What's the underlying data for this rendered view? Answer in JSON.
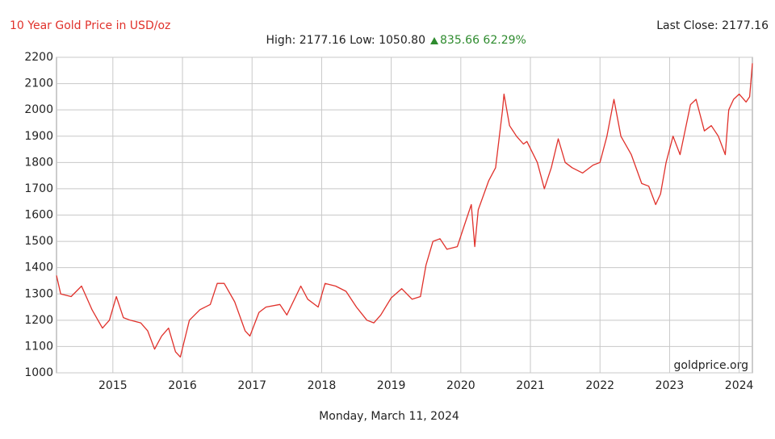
{
  "chart_data": {
    "type": "line",
    "title": "10 Year Gold Price in USD/oz",
    "last_close": "Last Close: 2177.16",
    "stats": "High: 2177.16 Low: 1050.80",
    "change": "835.66 62.29%",
    "watermark": "goldprice.org",
    "date": "Monday, March 11, 2024",
    "xlim": [
      2014.19,
      2024.19
    ],
    "xticks": [
      2015,
      2016,
      2017,
      2018,
      2019,
      2020,
      2021,
      2022,
      2023,
      2024
    ],
    "ylim": [
      1000,
      2200
    ],
    "yticks": [
      1000,
      1100,
      1200,
      1300,
      1400,
      1500,
      1600,
      1700,
      1800,
      1900,
      2000,
      2100,
      2200
    ],
    "grid": true,
    "x": [
      2014.19,
      2014.25,
      2014.4,
      2014.55,
      2014.7,
      2014.85,
      2014.95,
      2015.05,
      2015.15,
      2015.25,
      2015.4,
      2015.5,
      2015.6,
      2015.7,
      2015.8,
      2015.9,
      2015.97,
      2016.1,
      2016.25,
      2016.4,
      2016.5,
      2016.6,
      2016.75,
      2016.9,
      2016.97,
      2017.1,
      2017.2,
      2017.4,
      2017.5,
      2017.7,
      2017.8,
      2017.95,
      2018.05,
      2018.2,
      2018.35,
      2018.5,
      2018.65,
      2018.75,
      2018.85,
      2019.0,
      2019.15,
      2019.3,
      2019.42,
      2019.5,
      2019.6,
      2019.7,
      2019.8,
      2019.95,
      2020.05,
      2020.15,
      2020.2,
      2020.25,
      2020.4,
      2020.5,
      2020.6,
      2020.62,
      2020.7,
      2020.8,
      2020.9,
      2020.95,
      2021.1,
      2021.2,
      2021.3,
      2021.4,
      2021.5,
      2021.6,
      2021.75,
      2021.9,
      2022.0,
      2022.1,
      2022.2,
      2022.3,
      2022.45,
      2022.6,
      2022.7,
      2022.8,
      2022.87,
      2022.95,
      2023.05,
      2023.15,
      2023.3,
      2023.38,
      2023.5,
      2023.6,
      2023.7,
      2023.8,
      2023.85,
      2023.92,
      2024.0,
      2024.1,
      2024.15,
      2024.19
    ],
    "series": [
      {
        "name": "Gold",
        "color": "#e0312b",
        "values": [
          1370,
          1300,
          1290,
          1330,
          1240,
          1170,
          1200,
          1290,
          1210,
          1200,
          1190,
          1160,
          1090,
          1140,
          1170,
          1080,
          1060,
          1200,
          1240,
          1260,
          1340,
          1340,
          1270,
          1160,
          1140,
          1230,
          1250,
          1260,
          1220,
          1330,
          1280,
          1250,
          1340,
          1330,
          1310,
          1250,
          1200,
          1190,
          1220,
          1285,
          1320,
          1280,
          1290,
          1410,
          1500,
          1510,
          1470,
          1480,
          1560,
          1640,
          1480,
          1620,
          1730,
          1780,
          2000,
          2060,
          1940,
          1900,
          1870,
          1880,
          1800,
          1700,
          1780,
          1890,
          1800,
          1780,
          1760,
          1790,
          1800,
          1900,
          2040,
          1900,
          1830,
          1720,
          1710,
          1640,
          1680,
          1800,
          1900,
          1830,
          2020,
          2040,
          1920,
          1940,
          1900,
          1830,
          2000,
          2040,
          2060,
          2030,
          2050,
          2177.16
        ]
      }
    ]
  }
}
